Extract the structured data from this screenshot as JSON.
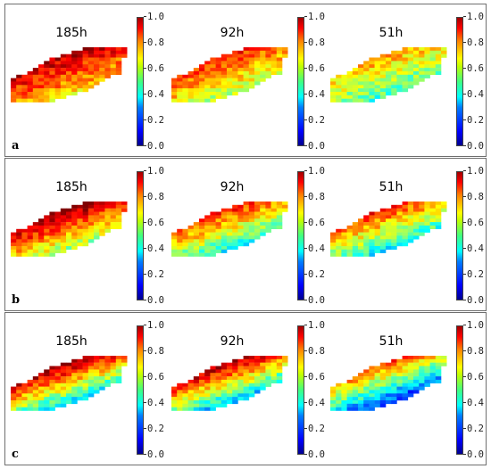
{
  "figure": {
    "panels": [
      {
        "letter": "a",
        "maps": [
          {
            "title": "185h",
            "level": 0.8
          },
          {
            "title": "92h",
            "level": 0.7
          },
          {
            "title": "51h",
            "level": 0.58
          }
        ]
      },
      {
        "letter": "b",
        "maps": [
          {
            "title": "185h",
            "level": 0.76
          },
          {
            "title": "92h",
            "level": 0.62
          },
          {
            "title": "51h",
            "level": 0.6
          }
        ]
      },
      {
        "letter": "c",
        "maps": [
          {
            "title": "185h",
            "level": 0.66
          },
          {
            "title": "92h",
            "level": 0.63
          },
          {
            "title": "51h",
            "level": 0.48
          }
        ]
      }
    ],
    "colorbar": {
      "ticks": [
        "0.0",
        "0.2",
        "0.4",
        "0.6",
        "0.8",
        "1.0"
      ],
      "colormap": "jet",
      "range": [
        0,
        1
      ]
    }
  },
  "chart_data": {
    "type": "heatmap",
    "rows": [
      "a",
      "b",
      "c"
    ],
    "columns": [
      "185h",
      "92h",
      "51h"
    ],
    "value_range": [
      0,
      1
    ],
    "colorbar_ticks": [
      0.0,
      0.2,
      0.4,
      0.6,
      0.8,
      1.0
    ]
  }
}
